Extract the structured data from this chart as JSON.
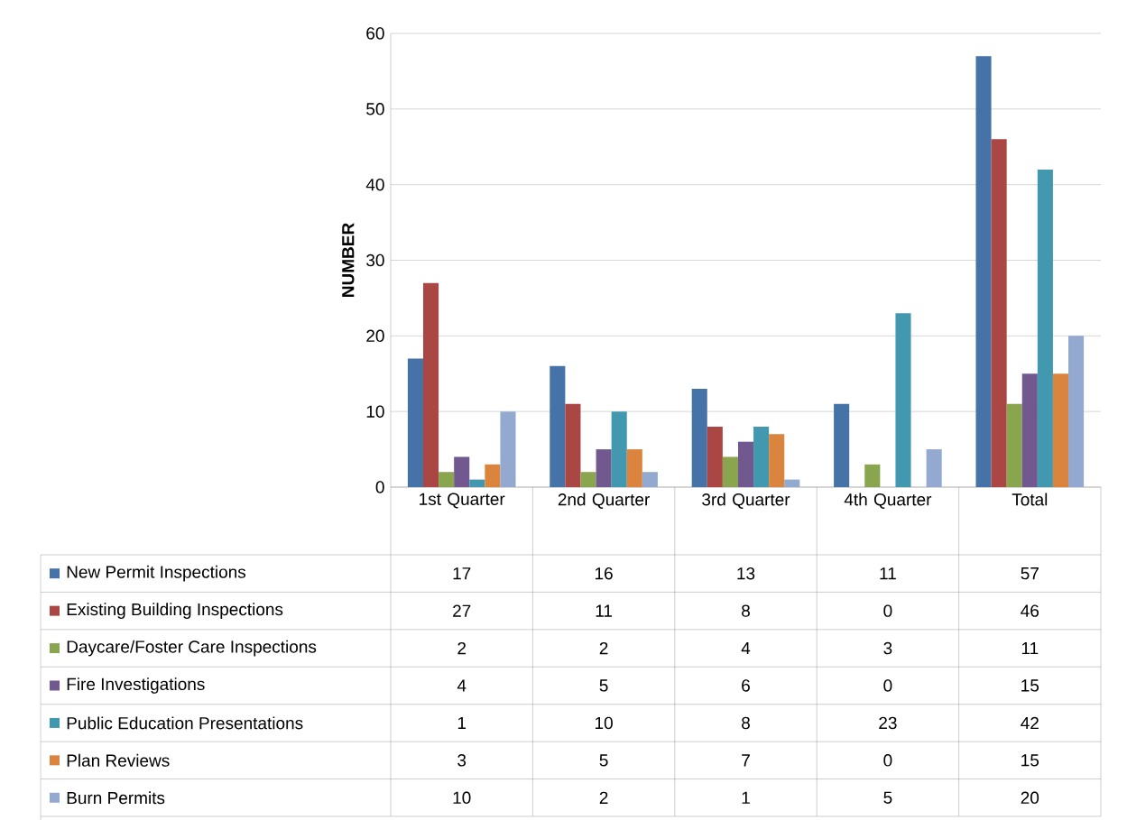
{
  "chart_data": {
    "type": "bar",
    "ylabel": "NUMBER",
    "categories": [
      "1st Quarter",
      "2nd Quarter",
      "3rd Quarter",
      "4th Quarter",
      "Total"
    ],
    "series": [
      {
        "name": "New Permit Inspections",
        "color": "#4572a7",
        "values": [
          17,
          16,
          13,
          11,
          57
        ]
      },
      {
        "name": "Existing Building Inspections",
        "color": "#aa4643",
        "values": [
          27,
          11,
          8,
          0,
          46
        ]
      },
      {
        "name": "Daycare/Foster Care Inspections",
        "color": "#89a54e",
        "values": [
          2,
          2,
          4,
          3,
          11
        ]
      },
      {
        "name": "Fire Investigations",
        "color": "#71588f",
        "values": [
          4,
          5,
          6,
          0,
          15
        ]
      },
      {
        "name": "Public Education Presentations",
        "color": "#4198af",
        "values": [
          1,
          10,
          8,
          23,
          42
        ]
      },
      {
        "name": "Plan Reviews",
        "color": "#db843d",
        "values": [
          3,
          5,
          7,
          0,
          15
        ]
      },
      {
        "name": "Burn Permits",
        "color": "#93a9cf",
        "values": [
          10,
          2,
          1,
          5,
          20
        ]
      }
    ],
    "ylim": [
      0,
      60
    ],
    "yticks": [
      0,
      10,
      20,
      30,
      40,
      50,
      60
    ],
    "grid": "y",
    "legend": "bottom",
    "data_labels": true
  }
}
